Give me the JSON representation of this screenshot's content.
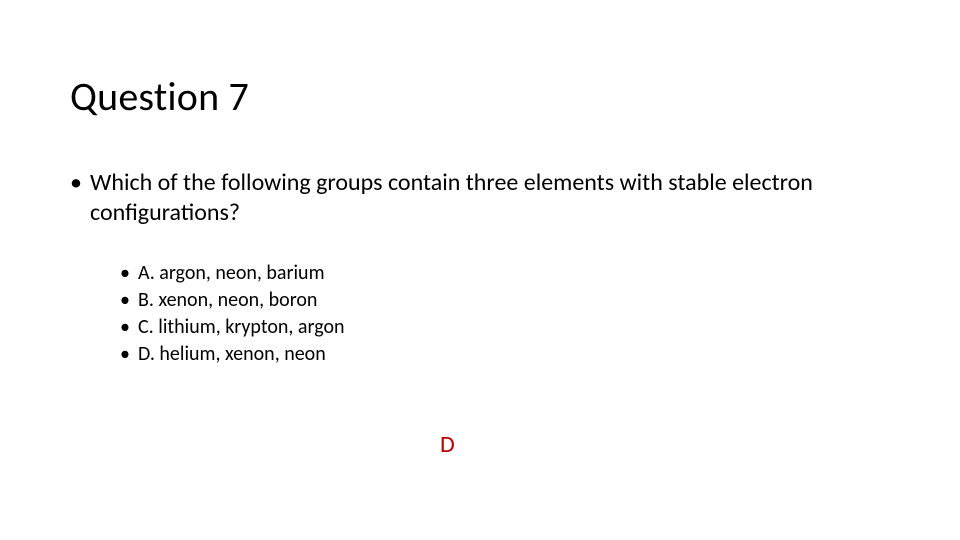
{
  "slide": {
    "title": "Question 7",
    "question": "Which of the following groups contain three elements with stable electron configurations?",
    "options": [
      "A. argon, neon, barium",
      "B. xenon, neon, boron",
      "C. lithium, krypton, argon",
      "D. helium, xenon, neon"
    ],
    "answer": "D",
    "style": {
      "background_color": "#ffffff",
      "text_color": "#000000",
      "answer_color": "#c00000",
      "title_fontsize_pt": 30,
      "question_fontsize_pt": 18,
      "option_fontsize_pt": 15,
      "answer_fontsize_pt": 18,
      "font_family": "Calibri"
    }
  }
}
